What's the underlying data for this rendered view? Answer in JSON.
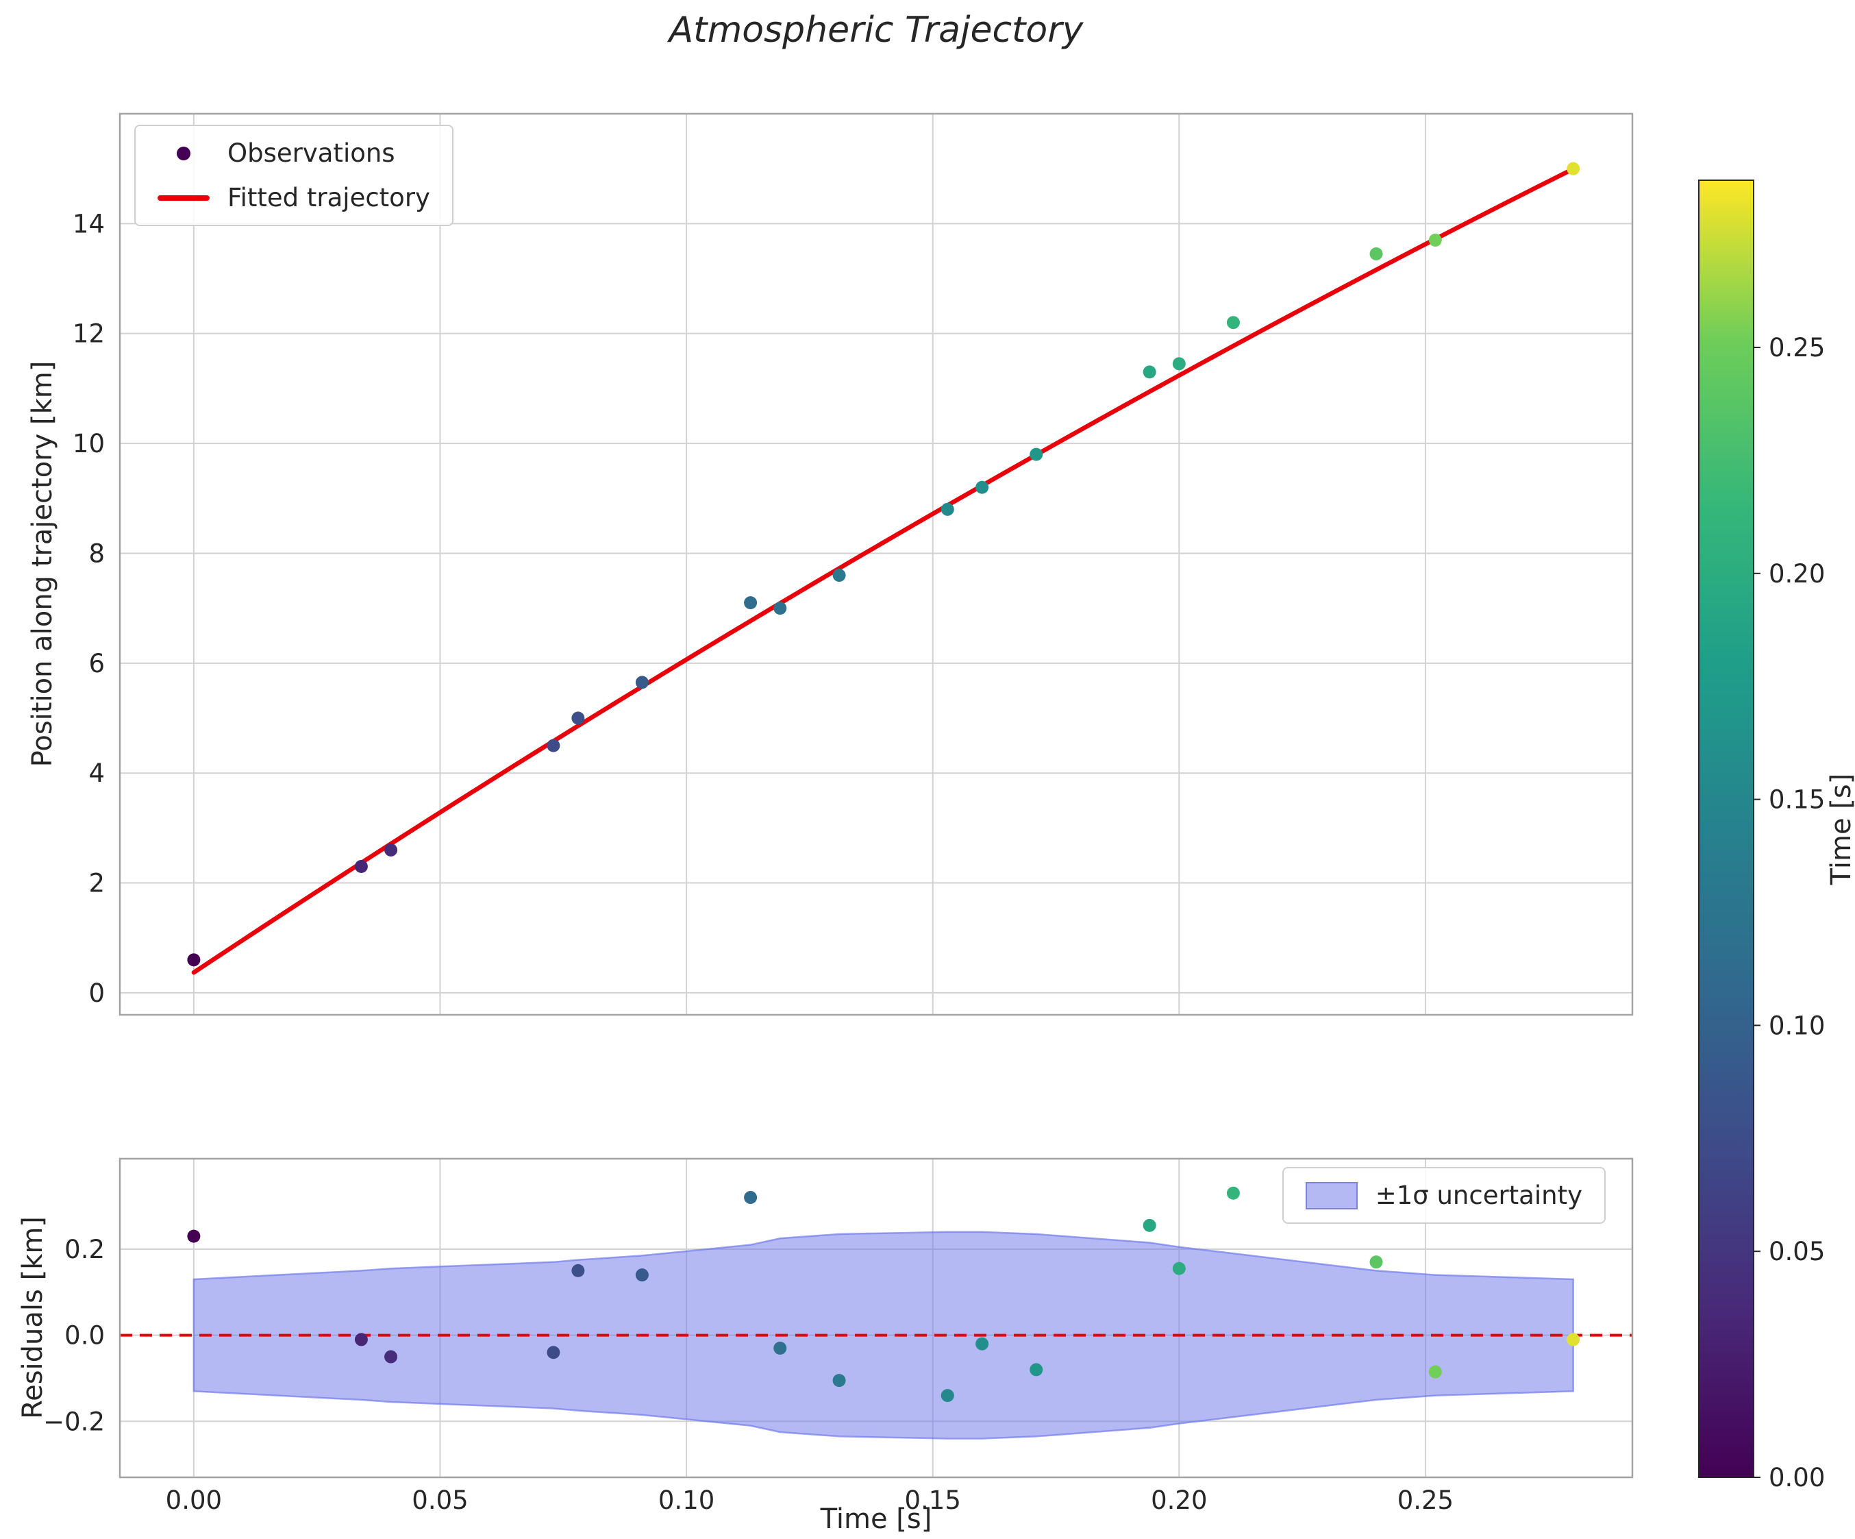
{
  "title": "Atmospheric Trajectory",
  "style": {
    "background": "#ffffff",
    "text_color": "#262626",
    "grid_color": "#d2d2d2",
    "frame_color": "#a3a3a3",
    "red": "#e8000b",
    "band_fill": "#6a73ea",
    "viridis_min": "#440154",
    "viridis_max": "#fde724"
  },
  "chart_data": [
    {
      "id": "trajectory",
      "type": "scatter",
      "title": "Atmospheric Trajectory",
      "xlabel": "Time [s]",
      "ylabel": "Position along trajectory [km]",
      "xlim": [
        -0.015,
        0.292
      ],
      "ylim": [
        -0.4,
        16.0
      ],
      "grid": true,
      "xticks": {
        "values": [
          0.0,
          0.05,
          0.1,
          0.15,
          0.2,
          0.25
        ],
        "labels": [
          "0.00",
          "0.05",
          "0.10",
          "0.15",
          "0.20",
          "0.25"
        ],
        "show_labels": false
      },
      "yticks": {
        "values": [
          0,
          2,
          4,
          6,
          8,
          10,
          12,
          14
        ],
        "labels": [
          "0",
          "2",
          "4",
          "6",
          "8",
          "10",
          "12",
          "14"
        ]
      },
      "legend": {
        "position": "upper left",
        "entries": [
          {
            "label": "Observations",
            "marker": "dot",
            "color": "#440154"
          },
          {
            "label": "Fitted trajectory",
            "marker": "line",
            "color": "#e8000b"
          }
        ]
      },
      "series": [
        {
          "name": "Fitted trajectory",
          "type": "line",
          "color": "#e8000b",
          "width": 6.5,
          "model": "quadratic",
          "coefficients": [
            0.37,
            59.6,
            -26.3
          ],
          "x_start": 0.0,
          "x_end": 0.28
        },
        {
          "name": "Observations",
          "type": "scatter",
          "point_name": "observation-point",
          "color_by_x": true,
          "colormap": "viridis",
          "color_vmin": 0.0,
          "color_vmax": 0.287,
          "x": [
            0.0,
            0.034,
            0.04,
            0.073,
            0.078,
            0.091,
            0.113,
            0.119,
            0.131,
            0.153,
            0.16,
            0.171,
            0.194,
            0.2,
            0.211,
            0.24,
            0.252,
            0.28
          ],
          "y": [
            0.6,
            2.3,
            2.6,
            4.5,
            5.0,
            5.65,
            7.1,
            7.0,
            7.6,
            8.8,
            9.2,
            9.8,
            11.3,
            11.45,
            12.2,
            13.45,
            13.7,
            15.0
          ]
        }
      ]
    },
    {
      "id": "residuals",
      "type": "scatter",
      "xlabel": "Time [s]",
      "ylabel": "Residuals [km]",
      "xlim": [
        -0.015,
        0.292
      ],
      "ylim": [
        -0.33,
        0.41
      ],
      "grid": true,
      "xticks": {
        "values": [
          0.0,
          0.05,
          0.1,
          0.15,
          0.2,
          0.25
        ],
        "labels": [
          "0.00",
          "0.05",
          "0.10",
          "0.15",
          "0.20",
          "0.25"
        ],
        "show_labels": true
      },
      "yticks": {
        "values": [
          -0.2,
          0.0,
          0.2
        ],
        "labels": [
          "−0.2",
          "0.0",
          "0.2"
        ]
      },
      "legend": {
        "position": "upper right",
        "entries": [
          {
            "label": "±1σ uncertainty",
            "marker": "patch",
            "fill": "rgba(106,115,234,0.5)",
            "border": "#7b82e0"
          }
        ]
      },
      "series": [
        {
          "name": "±1σ uncertainty",
          "type": "band",
          "color": "#6a73ea",
          "opacity": 0.5,
          "x": [
            0.0,
            0.034,
            0.04,
            0.073,
            0.078,
            0.091,
            0.113,
            0.119,
            0.131,
            0.153,
            0.16,
            0.171,
            0.194,
            0.2,
            0.211,
            0.24,
            0.252,
            0.28
          ],
          "upper": [
            0.13,
            0.15,
            0.155,
            0.17,
            0.175,
            0.185,
            0.21,
            0.225,
            0.235,
            0.24,
            0.24,
            0.235,
            0.215,
            0.205,
            0.19,
            0.15,
            0.14,
            0.13
          ],
          "lower": [
            -0.13,
            -0.15,
            -0.155,
            -0.17,
            -0.175,
            -0.185,
            -0.21,
            -0.225,
            -0.235,
            -0.24,
            -0.24,
            -0.235,
            -0.215,
            -0.205,
            -0.19,
            -0.15,
            -0.14,
            -0.13
          ]
        },
        {
          "name": "zero line",
          "type": "hline",
          "y": 0.0,
          "color": "#e8000b",
          "style": "dashed",
          "width": 4
        },
        {
          "name": "Residuals",
          "type": "scatter",
          "point_name": "residual-point",
          "color_by_x": true,
          "colormap": "viridis",
          "color_vmin": 0.0,
          "color_vmax": 0.287,
          "x": [
            0.0,
            0.034,
            0.04,
            0.073,
            0.078,
            0.091,
            0.113,
            0.119,
            0.131,
            0.153,
            0.16,
            0.171,
            0.194,
            0.2,
            0.211,
            0.24,
            0.252,
            0.28
          ],
          "y": [
            0.23,
            -0.01,
            -0.05,
            -0.04,
            0.15,
            0.14,
            0.32,
            -0.03,
            -0.105,
            -0.14,
            -0.02,
            -0.08,
            0.255,
            0.155,
            0.33,
            0.17,
            -0.085,
            -0.01
          ]
        }
      ]
    }
  ],
  "colorbar": {
    "label": "Time [s]",
    "colormap": "viridis",
    "vmin": 0.0,
    "vmax": 0.287,
    "ticks": {
      "values": [
        0.0,
        0.05,
        0.1,
        0.15,
        0.2,
        0.25
      ],
      "labels": [
        "0.00",
        "0.05",
        "0.10",
        "0.15",
        "0.20",
        "0.25"
      ]
    }
  }
}
